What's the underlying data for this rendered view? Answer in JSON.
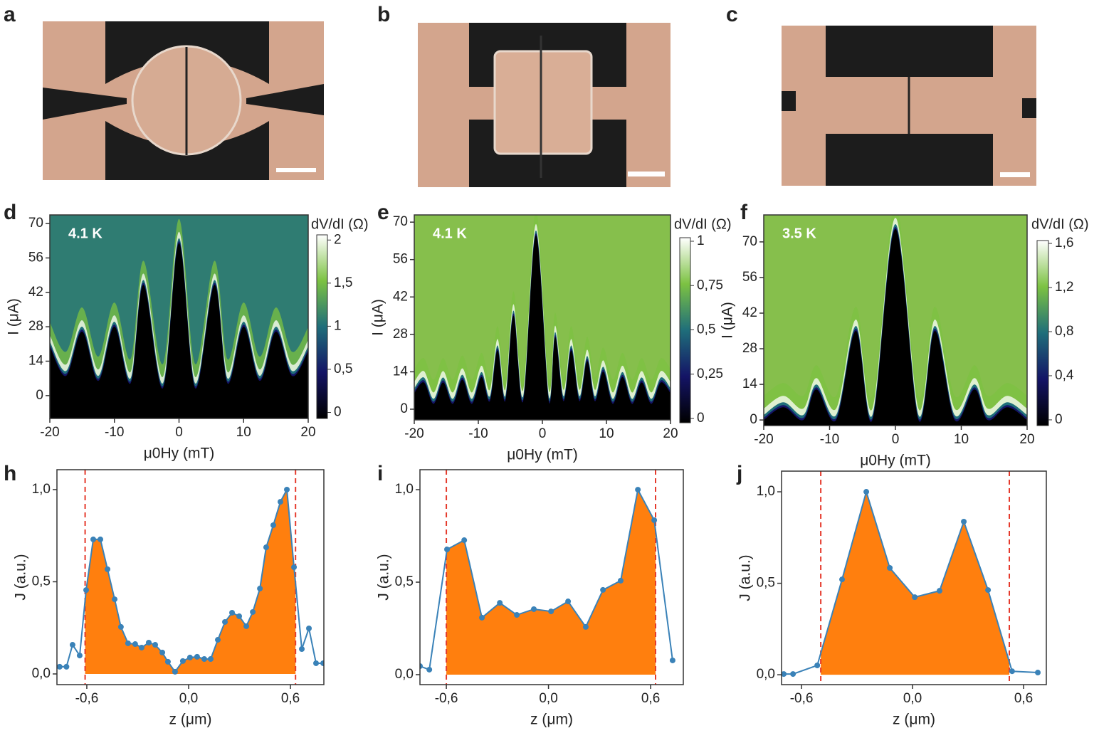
{
  "image_panels": [
    "a",
    "b",
    "c"
  ],
  "chart_data": [
    {
      "type": "heatmap",
      "panel": "d",
      "annotation": "4.1 K",
      "xlabel": "μ0Hy (mT)",
      "ylabel": "I (μA)",
      "colorbar_label": "dV/dI (Ω)",
      "x": [
        -20,
        -17.5,
        -15,
        -12.5,
        -10,
        -7.5,
        -5.5,
        -2.5,
        0,
        2.5,
        5.5,
        7.5,
        10,
        12.5,
        15,
        17.5,
        20
      ],
      "values": [
        20,
        8,
        26,
        6,
        28,
        5,
        45,
        3,
        62,
        3,
        45,
        5,
        28,
        6,
        26,
        8,
        18
      ],
      "xlim": [
        -20,
        20
      ],
      "xticks": [
        -20,
        -10,
        0,
        10,
        20
      ],
      "ylim": [
        -9.3,
        73.5
      ],
      "yticks": [
        0,
        14,
        28,
        42,
        56,
        70
      ],
      "clim": [
        -0.07,
        2.06
      ],
      "cticks": [
        0,
        {
          "value": 0.5,
          "label": "0,5"
        },
        1,
        {
          "value": 1.5,
          "label": "1,5"
        },
        2
      ],
      "field_color": "#2f7c72",
      "colormap": [
        "#000000",
        "#141466",
        "#1f6e7a",
        "#7cc242",
        "#ffffff"
      ]
    },
    {
      "type": "heatmap",
      "panel": "e",
      "annotation": "4.1 K",
      "xlabel": "μ0Hy (mT)",
      "ylabel": "I (μA)",
      "colorbar_label": "dV/dI (Ω)",
      "x": [
        -20,
        -18.5,
        -17,
        -15.5,
        -14,
        -12.5,
        -11,
        -9.5,
        -8.2,
        -7,
        -5.8,
        -4.5,
        -3,
        -1,
        1,
        2,
        3.3,
        4.5,
        5.8,
        7,
        8.2,
        9.5,
        11,
        12.5,
        14,
        15.5,
        17,
        18.5,
        20
      ],
      "values": [
        6,
        10,
        2,
        10,
        2,
        11,
        2,
        12,
        3,
        22,
        3,
        35,
        3,
        65,
        3,
        27,
        3,
        22,
        3,
        18,
        3,
        14,
        2,
        12,
        2,
        10,
        2,
        10,
        6
      ],
      "xlim": [
        -20,
        20
      ],
      "xticks": [
        -20,
        -10,
        0,
        10,
        20
      ],
      "ylim": [
        -4,
        72.7
      ],
      "yticks": [
        0,
        14,
        28,
        42,
        56,
        70
      ],
      "clim": [
        -0.024,
        1.02
      ],
      "cticks": [
        0,
        {
          "value": 0.25,
          "label": "0,25"
        },
        {
          "value": 0.5,
          "label": "0,5"
        },
        {
          "value": 0.75,
          "label": "0,75"
        },
        1
      ],
      "field_color": "#86bf4c",
      "colormap": [
        "#000000",
        "#141466",
        "#1f6e7a",
        "#7cc242",
        "#ffffff"
      ]
    },
    {
      "type": "heatmap",
      "panel": "f",
      "annotation": "3.5 K",
      "xlabel": "μ0Hy (mT)",
      "ylabel": "I (μA)",
      "colorbar_label": "dV/dI (Ω)",
      "x": [
        -20,
        -17,
        -14,
        -12,
        -9,
        -6,
        -3.5,
        0,
        3.5,
        6,
        9,
        12,
        14,
        17,
        20
      ],
      "values": [
        0,
        5,
        0,
        12,
        0,
        35,
        0,
        75,
        0,
        35,
        0,
        12,
        0,
        5,
        0
      ],
      "xlim": [
        -20,
        20
      ],
      "xticks": [
        -20,
        -10,
        0,
        10,
        20
      ],
      "ylim": [
        -2.2,
        80.6
      ],
      "yticks": [
        0,
        14,
        28,
        42,
        56,
        70
      ],
      "clim": [
        -0.052,
        1.626
      ],
      "cticks": [
        0,
        {
          "value": 0.4,
          "label": "0,4"
        },
        {
          "value": 0.8,
          "label": "0,8"
        },
        {
          "value": 1.2,
          "label": "1,2"
        },
        {
          "value": 1.6,
          "label": "1,6"
        }
      ],
      "field_color": "#86bf4c",
      "colormap": [
        "#000000",
        "#141466",
        "#1f6e7a",
        "#7cc242",
        "#ffffff"
      ]
    },
    {
      "type": "line",
      "panel": "h",
      "xlabel": "z (μm)",
      "ylabel": "J (a.u.)",
      "x": [
        -0.76,
        -0.72,
        -0.684,
        -0.642,
        -0.604,
        -0.562,
        -0.52,
        -0.478,
        -0.436,
        -0.399,
        -0.357,
        -0.315,
        -0.277,
        -0.235,
        -0.197,
        -0.155,
        -0.122,
        -0.08,
        -0.034,
        0.008,
        0.05,
        0.092,
        0.13,
        0.172,
        0.214,
        0.256,
        0.298,
        0.34,
        0.378,
        0.42,
        0.457,
        0.499,
        0.541,
        0.579,
        0.621,
        0.667,
        0.709,
        0.751,
        0.793
      ],
      "values": [
        0.039,
        0.039,
        0.158,
        0.1,
        0.455,
        0.73,
        0.73,
        0.568,
        0.405,
        0.255,
        0.166,
        0.162,
        0.143,
        0.17,
        0.158,
        0.116,
        0.066,
        0.012,
        0.07,
        0.089,
        0.093,
        0.081,
        0.081,
        0.185,
        0.282,
        0.332,
        0.313,
        0.259,
        0.336,
        0.463,
        0.687,
        0.807,
        0.934,
        1.0,
        0.579,
        0.135,
        0.247,
        0.058,
        0.058
      ],
      "vlines": [
        -0.61,
        0.63
      ],
      "xlim": [
        -0.776,
        0.797
      ],
      "ylim": [
        -0.058,
        1.108
      ],
      "xticks": [
        {
          "value": -0.6,
          "label": "-0,6"
        },
        {
          "value": 0,
          "label": "0,0"
        },
        {
          "value": 0.6,
          "label": "0,6"
        }
      ],
      "yticks": [
        {
          "value": 0,
          "label": "0,0"
        },
        {
          "value": 0.5,
          "label": "0,5"
        },
        {
          "value": 1,
          "label": "1,0"
        }
      ],
      "color": "#3a82b8",
      "fill_color": "#ff7f0e",
      "vline_color": "#e53a2c"
    },
    {
      "type": "line",
      "panel": "i",
      "xlabel": "z (μm)",
      "ylabel": "J (a.u.)",
      "x": [
        -0.755,
        -0.7,
        -0.596,
        -0.495,
        -0.391,
        -0.286,
        -0.186,
        -0.086,
        0.015,
        0.115,
        0.219,
        0.32,
        0.424,
        0.525,
        0.621,
        0.729
      ],
      "values": [
        0.046,
        0.027,
        0.677,
        0.727,
        0.308,
        0.388,
        0.323,
        0.354,
        0.342,
        0.396,
        0.258,
        0.458,
        0.508,
        1.0,
        0.835,
        0.077
      ],
      "vlines": [
        -0.6,
        0.629
      ],
      "xlim": [
        -0.755,
        0.792
      ],
      "ylim": [
        -0.054,
        1.108
      ],
      "xticks": [
        {
          "value": -0.6,
          "label": "-0,6"
        },
        {
          "value": 0,
          "label": "0,0"
        },
        {
          "value": 0.6,
          "label": "0,6"
        }
      ],
      "yticks": [
        {
          "value": 0,
          "label": "0,0"
        },
        {
          "value": 0.5,
          "label": "0,5"
        },
        {
          "value": 1,
          "label": "1,0"
        }
      ],
      "color": "#3a82b8",
      "fill_color": "#ff7f0e",
      "vline_color": "#e53a2c"
    },
    {
      "type": "line",
      "panel": "j",
      "xlabel": "z (μm)",
      "ylabel": "J (a.u.)",
      "x": [
        -0.696,
        -0.646,
        -0.515,
        -0.381,
        -0.25,
        -0.123,
        0.012,
        0.146,
        0.277,
        0.408,
        0.538,
        0.677
      ],
      "values": [
        0.004,
        0.004,
        0.051,
        0.521,
        1.0,
        0.584,
        0.424,
        0.459,
        0.837,
        0.463,
        0.019,
        0.012
      ],
      "vlines": [
        -0.496,
        0.523
      ],
      "xlim": [
        -0.708,
        0.723
      ],
      "ylim": [
        -0.054,
        1.113
      ],
      "xticks": [
        {
          "value": -0.6,
          "label": "-0,6"
        },
        {
          "value": 0,
          "label": "0,0"
        },
        {
          "value": 0.6,
          "label": "0,6"
        }
      ],
      "yticks": [
        {
          "value": 0,
          "label": "0,0"
        },
        {
          "value": 0.5,
          "label": "0,5"
        },
        {
          "value": 1,
          "label": "1,0"
        }
      ],
      "color": "#3a82b8",
      "fill_color": "#ff7f0e",
      "vline_color": "#e53a2c"
    }
  ]
}
